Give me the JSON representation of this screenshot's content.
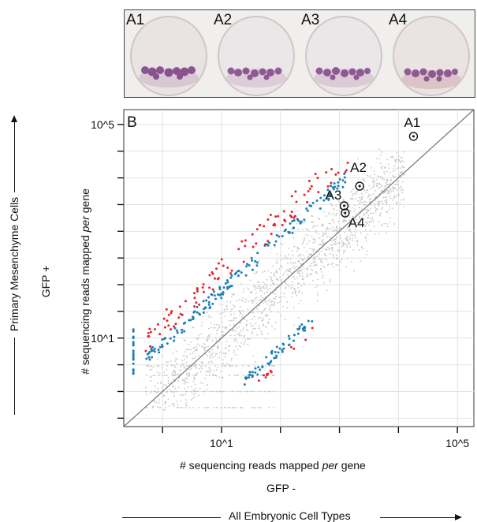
{
  "panel_a": {
    "embryos": [
      {
        "label": "A1"
      },
      {
        "label": "A2"
      },
      {
        "label": "A3"
      },
      {
        "label": "A4"
      }
    ]
  },
  "chart_data": {
    "type": "scatter",
    "panel_label": "B",
    "scale": "log",
    "xlabel_prefix": "# sequencing reads mapped ",
    "xlabel_italic": "per",
    "xlabel_suffix": " gene",
    "xsublabel": "GFP -",
    "ylabel_prefix": "# sequencing reads mapped ",
    "ylabel_italic": "per",
    "ylabel_suffix": " gene",
    "ysublabel": "GFP +",
    "xlim": [
      0.22,
      190000
    ],
    "ylim": [
      0.22,
      190000
    ],
    "x_ticks": [
      1,
      10,
      100,
      1000,
      10000,
      100000,
      1000000
    ],
    "x_tick_labels": [
      {
        "value": 10,
        "label": "10^1"
      },
      {
        "value": 100000,
        "label": "10^5"
      }
    ],
    "y_ticks": [
      0.316,
      1,
      3.16,
      10,
      31.6,
      100,
      316,
      1000,
      3162,
      10000,
      31623,
      100000
    ],
    "y_tick_labels": [
      {
        "value": 10,
        "label": "10^1"
      },
      {
        "value": 100000,
        "label": "10^5"
      }
    ],
    "grid": true,
    "diagonal": "y = x",
    "series": [
      {
        "color": "#c6c6c6"
      },
      {
        "color": "#1f7fb4"
      },
      {
        "color": "#e6252b"
      }
    ],
    "marked_genes": [
      {
        "label": "A1",
        "x": 18000,
        "y": 60000
      },
      {
        "label": "A2",
        "x": 2200,
        "y": 7000
      },
      {
        "label": "A3",
        "x": 1200,
        "y": 3000
      },
      {
        "label": "A4",
        "x": 1250,
        "y": 2200
      }
    ]
  },
  "side_labels": {
    "left_axis": "Primary Mesenchyme Cells",
    "bottom_axis": "All Embryonic Cell Types"
  }
}
